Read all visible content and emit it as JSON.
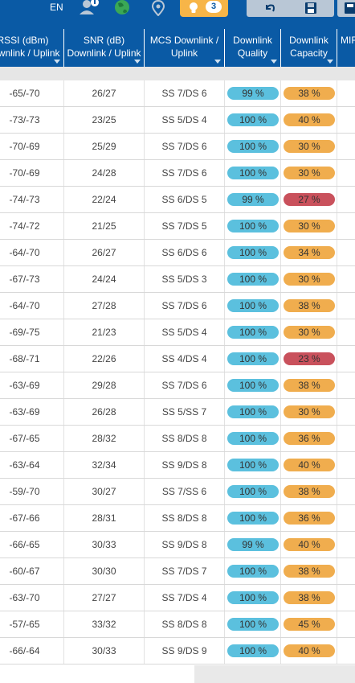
{
  "topbar": {
    "language": "EN",
    "notification_count": "3",
    "colors": {
      "bar": "#0a5aa5",
      "alert": "#f7b548",
      "tool_button": "#b9c7d6"
    },
    "icons": [
      "user-icon",
      "globe-icon",
      "location-pin-icon",
      "lightbulb-icon",
      "undo-icon",
      "save-icon"
    ]
  },
  "table": {
    "columns": [
      {
        "line1": "RSSI (dBm)",
        "line2": "Downlink / Uplink"
      },
      {
        "line1": "SNR (dB)",
        "line2": "Downlink / Uplink"
      },
      {
        "line1": "MCS Downlink /",
        "line2": "Uplink"
      },
      {
        "line1": "Downlink",
        "line2": "Quality"
      },
      {
        "line1": "Downlink",
        "line2": "Capacity"
      },
      {
        "line1": "MIF",
        "line2": ""
      }
    ],
    "rows": [
      {
        "rssi": "-65/-70",
        "snr": "26/27",
        "mcs": "SS 7/DS 6",
        "quality": "99 %",
        "capacity": "38 %",
        "cap_level": "orange"
      },
      {
        "rssi": "-73/-73",
        "snr": "23/25",
        "mcs": "SS 5/DS 4",
        "quality": "100 %",
        "capacity": "40 %",
        "cap_level": "orange"
      },
      {
        "rssi": "-70/-69",
        "snr": "25/29",
        "mcs": "SS 7/DS 6",
        "quality": "100 %",
        "capacity": "30 %",
        "cap_level": "orange"
      },
      {
        "rssi": "-70/-69",
        "snr": "24/28",
        "mcs": "SS 7/DS 6",
        "quality": "100 %",
        "capacity": "30 %",
        "cap_level": "orange"
      },
      {
        "rssi": "-74/-73",
        "snr": "22/24",
        "mcs": "SS 6/DS 5",
        "quality": "99 %",
        "capacity": "27 %",
        "cap_level": "red"
      },
      {
        "rssi": "-74/-72",
        "snr": "21/25",
        "mcs": "SS 7/DS 5",
        "quality": "100 %",
        "capacity": "30 %",
        "cap_level": "orange"
      },
      {
        "rssi": "-64/-70",
        "snr": "26/27",
        "mcs": "SS 6/DS 6",
        "quality": "100 %",
        "capacity": "34 %",
        "cap_level": "orange"
      },
      {
        "rssi": "-67/-73",
        "snr": "24/24",
        "mcs": "SS 5/DS 3",
        "quality": "100 %",
        "capacity": "30 %",
        "cap_level": "orange"
      },
      {
        "rssi": "-64/-70",
        "snr": "27/28",
        "mcs": "SS 7/DS 6",
        "quality": "100 %",
        "capacity": "38 %",
        "cap_level": "orange"
      },
      {
        "rssi": "-69/-75",
        "snr": "21/23",
        "mcs": "SS 5/DS 4",
        "quality": "100 %",
        "capacity": "30 %",
        "cap_level": "orange"
      },
      {
        "rssi": "-68/-71",
        "snr": "22/26",
        "mcs": "SS 4/DS 4",
        "quality": "100 %",
        "capacity": "23 %",
        "cap_level": "red"
      },
      {
        "rssi": "-63/-69",
        "snr": "29/28",
        "mcs": "SS 7/DS 6",
        "quality": "100 %",
        "capacity": "38 %",
        "cap_level": "orange"
      },
      {
        "rssi": "-63/-69",
        "snr": "26/28",
        "mcs": "SS 5/SS 7",
        "quality": "100 %",
        "capacity": "30 %",
        "cap_level": "orange"
      },
      {
        "rssi": "-67/-65",
        "snr": "28/32",
        "mcs": "SS 8/DS 8",
        "quality": "100 %",
        "capacity": "36 %",
        "cap_level": "orange"
      },
      {
        "rssi": "-63/-64",
        "snr": "32/34",
        "mcs": "SS 9/DS 8",
        "quality": "100 %",
        "capacity": "40 %",
        "cap_level": "orange"
      },
      {
        "rssi": "-59/-70",
        "snr": "30/27",
        "mcs": "SS 7/SS 6",
        "quality": "100 %",
        "capacity": "38 %",
        "cap_level": "orange"
      },
      {
        "rssi": "-67/-66",
        "snr": "28/31",
        "mcs": "SS 8/DS 8",
        "quality": "100 %",
        "capacity": "36 %",
        "cap_level": "orange"
      },
      {
        "rssi": "-66/-65",
        "snr": "30/33",
        "mcs": "SS 9/DS 8",
        "quality": "99 %",
        "capacity": "40 %",
        "cap_level": "orange"
      },
      {
        "rssi": "-60/-67",
        "snr": "30/30",
        "mcs": "SS 7/DS 7",
        "quality": "100 %",
        "capacity": "38 %",
        "cap_level": "orange"
      },
      {
        "rssi": "-63/-70",
        "snr": "27/27",
        "mcs": "SS 7/DS 4",
        "quality": "100 %",
        "capacity": "38 %",
        "cap_level": "orange"
      },
      {
        "rssi": "-57/-65",
        "snr": "33/32",
        "mcs": "SS 8/DS 8",
        "quality": "100 %",
        "capacity": "45 %",
        "cap_level": "orange"
      },
      {
        "rssi": "-66/-64",
        "snr": "30/33",
        "mcs": "SS 9/DS 9",
        "quality": "100 %",
        "capacity": "40 %",
        "cap_level": "orange"
      }
    ],
    "colors": {
      "quality": "#5bc0de",
      "capacity_ok": "#f0ad4e",
      "capacity_low": "#c9515c"
    }
  }
}
